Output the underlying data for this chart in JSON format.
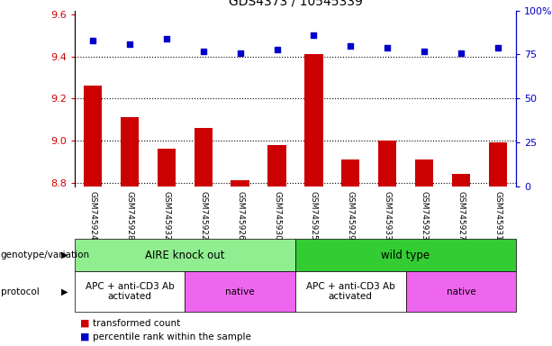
{
  "title": "GDS4373 / 10545339",
  "samples": [
    "GSM745924",
    "GSM745928",
    "GSM745932",
    "GSM745922",
    "GSM745926",
    "GSM745930",
    "GSM745925",
    "GSM745929",
    "GSM745933",
    "GSM745923",
    "GSM745927",
    "GSM745931"
  ],
  "transformed_count": [
    9.26,
    9.11,
    8.96,
    9.06,
    8.81,
    8.98,
    9.41,
    8.91,
    9.0,
    8.91,
    8.84,
    8.99
  ],
  "percentile_rank": [
    83,
    81,
    84,
    77,
    76,
    78,
    86,
    80,
    79,
    77,
    76,
    79
  ],
  "ylim_left": [
    8.78,
    9.62
  ],
  "ylim_right": [
    0,
    100
  ],
  "yticks_left": [
    8.8,
    9.0,
    9.2,
    9.4,
    9.6
  ],
  "yticks_right": [
    0,
    25,
    50,
    75,
    100
  ],
  "ytick_labels_right": [
    "0",
    "25",
    "50",
    "75",
    "100%"
  ],
  "bar_color": "#cc0000",
  "dot_color": "#0000cc",
  "bar_bottom": 8.78,
  "genotype_groups": [
    {
      "label": "AIRE knock out",
      "start": 0,
      "end": 6,
      "color": "#90ee90"
    },
    {
      "label": "wild type",
      "start": 6,
      "end": 12,
      "color": "#33cc33"
    }
  ],
  "protocol_groups": [
    {
      "label": "APC + anti-CD3 Ab\nactivated",
      "start": 0,
      "end": 3,
      "color": "#ffffff"
    },
    {
      "label": "native",
      "start": 3,
      "end": 6,
      "color": "#ee66ee"
    },
    {
      "label": "APC + anti-CD3 Ab\nactivated",
      "start": 6,
      "end": 9,
      "color": "#ffffff"
    },
    {
      "label": "native",
      "start": 9,
      "end": 12,
      "color": "#ee66ee"
    }
  ],
  "legend_items": [
    {
      "label": "transformed count",
      "color": "#cc0000"
    },
    {
      "label": "percentile rank within the sample",
      "color": "#0000cc"
    }
  ],
  "left_axis_color": "#cc0000",
  "right_axis_color": "#0000cc",
  "background_color": "#ffffff",
  "tick_label_area_color": "#cccccc",
  "xlim": [
    -0.5,
    11.5
  ]
}
